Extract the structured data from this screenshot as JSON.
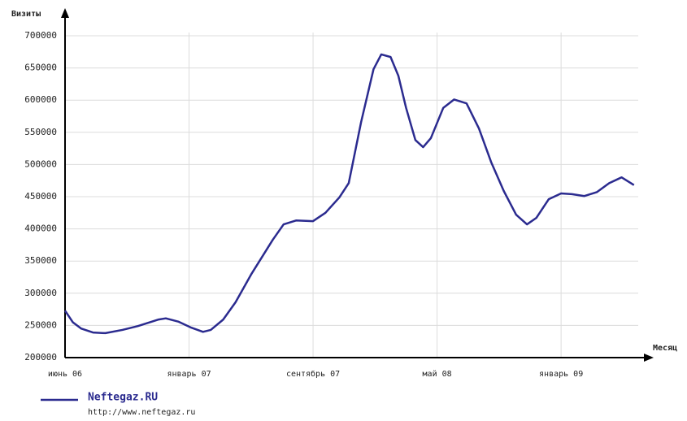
{
  "chart_data": {
    "type": "line",
    "y_label": "Визиты",
    "x_label": "Месяц",
    "x": [
      0,
      0.5,
      1.05,
      1.8,
      2.6,
      3.7,
      4.7,
      6.0,
      6.5,
      7.3,
      8.1,
      8.9,
      9.4,
      10.2,
      11.0,
      12.0,
      13.4,
      14.1,
      14.9,
      16.0,
      16.8,
      17.7,
      18.3,
      19.1,
      19.9,
      20.4,
      21.0,
      21.5,
      22.0,
      22.6,
      23.1,
      23.6,
      24.4,
      25.1,
      25.9,
      26.7,
      27.5,
      28.3,
      29.1,
      29.8,
      30.4,
      31.2,
      32.0,
      32.7,
      33.5,
      34.3,
      35.1,
      35.9,
      36.7
    ],
    "series": [
      {
        "name": "Neftegaz.RU",
        "color": "#2b2b8f",
        "values": [
          273000,
          255000,
          245000,
          239000,
          238000,
          243000,
          249000,
          259000,
          261000,
          256000,
          247000,
          240000,
          243000,
          259000,
          286000,
          329000,
          383000,
          407000,
          413000,
          412000,
          425000,
          449000,
          471000,
          566000,
          648000,
          671000,
          667000,
          638000,
          588000,
          538000,
          527000,
          541000,
          588000,
          601000,
          595000,
          556000,
          503000,
          459000,
          422000,
          407000,
          417000,
          446000,
          455000,
          454000,
          451000,
          457000,
          471000,
          480000,
          468000
        ]
      }
    ],
    "legend_note": "http://www.neftegaz.ru",
    "xlim": [
      0,
      37.5
    ],
    "xticks": [
      {
        "value": 0,
        "label": "июнь 06"
      },
      {
        "value": 8,
        "label": "январь 07"
      },
      {
        "value": 16,
        "label": "сентябрь 07"
      },
      {
        "value": 24,
        "label": "май 08"
      },
      {
        "value": 32,
        "label": "январь 09"
      }
    ],
    "ylim": [
      200000,
      700000
    ],
    "yticks": [
      200000,
      250000,
      300000,
      350000,
      400000,
      450000,
      500000,
      550000,
      600000,
      650000,
      700000
    ],
    "grid": true
  }
}
